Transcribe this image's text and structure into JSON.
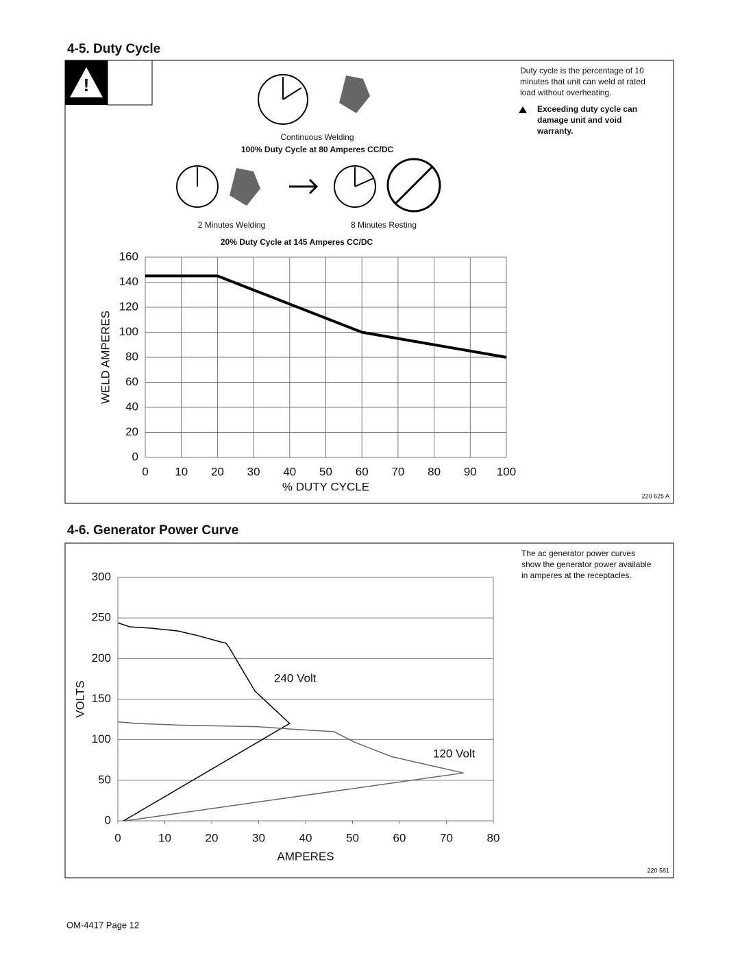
{
  "section1": {
    "heading": "4-5.  Duty Cycle",
    "note": [
      "Duty cycle is the percentage of 10",
      "minutes that unit can weld at rated",
      "load without overheating."
    ],
    "warning": [
      "Exceeding duty cycle can",
      "damage unit and void",
      "warranty."
    ],
    "caption_continuous": "Continuous Welding",
    "caption_100": "100% Duty Cycle at 80 Amperes CC/DC",
    "caption_welding": "2 Minutes Welding",
    "caption_resting": "8 Minutes Resting",
    "caption_20": "20% Duty Cycle at 145 Amperes CC/DC",
    "figure_id": "220 625  A"
  },
  "section2": {
    "heading": "4-6.  Generator Power Curve",
    "note": [
      "The ac generator power curves",
      "show the generator power available",
      "in amperes at the receptacles."
    ],
    "figure_id": "220 581"
  },
  "footer": "OM-4417 Page 12",
  "chart_data": [
    {
      "type": "line",
      "x_label": "% DUTY CYCLE",
      "y_label": "WELD AMPERES",
      "xlim": [
        0,
        100
      ],
      "xticks": [
        0,
        10,
        20,
        30,
        40,
        50,
        60,
        70,
        80,
        90,
        100
      ],
      "ylim": [
        0,
        160
      ],
      "yticks": [
        0,
        20,
        40,
        60,
        80,
        100,
        120,
        140,
        160
      ],
      "grid": "both",
      "series": [
        {
          "x": [
            0,
            20,
            60,
            100
          ],
          "values": [
            145,
            145,
            100,
            80
          ],
          "color": "#000000"
        }
      ]
    },
    {
      "type": "line",
      "x_label": "AMPERES",
      "y_label": "VOLTS",
      "xlim": [
        0,
        80
      ],
      "xticks": [
        0,
        10,
        20,
        30,
        40,
        50,
        60,
        70,
        80
      ],
      "ylim": [
        0,
        300
      ],
      "yticks": [
        0,
        50,
        100,
        150,
        200,
        250,
        300
      ],
      "grid": "y",
      "series": [
        {
          "name": "240 Volt",
          "color": "#000000",
          "x": [
            0,
            2.6,
            7,
            12.8,
            17.2,
            21.6,
            23,
            23.8,
            25.2,
            29.2,
            36.6,
            1.2
          ],
          "values": [
            244,
            239,
            237.5,
            234,
            228,
            221,
            219,
            213,
            199,
            160,
            120,
            0
          ]
        },
        {
          "name": "120 Volt",
          "color": "#666666",
          "x": [
            0,
            4,
            12.8,
            30,
            37,
            46,
            50.4,
            58.4,
            73.6,
            1.5
          ],
          "values": [
            122,
            120,
            118,
            116,
            113,
            110,
            97,
            79,
            59,
            0
          ]
        }
      ]
    }
  ]
}
